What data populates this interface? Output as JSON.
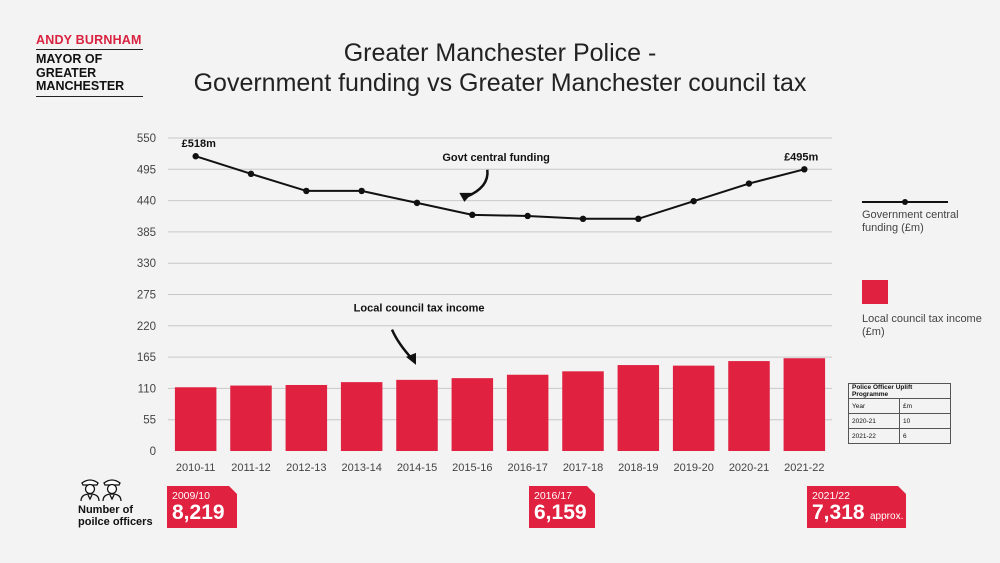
{
  "brand": {
    "name": "ANDY BURNHAM",
    "role_lines": [
      "MAYOR OF",
      "GREATER",
      "MANCHESTER"
    ]
  },
  "title_lines": [
    "Greater Manchester Police -",
    "Government funding vs Greater Manchester council tax"
  ],
  "colors": {
    "bar": "#e0213f",
    "line": "#111111",
    "callout": "#e0213f",
    "grid": "#c8c8c8"
  },
  "chart_data": {
    "type": "bar",
    "categories": [
      "2010-11",
      "2011-12",
      "2012-13",
      "2013-14",
      "2014-15",
      "2015-16",
      "2016-17",
      "2017-18",
      "2018-19",
      "2019-20",
      "2020-21",
      "2021-22"
    ],
    "ylim": [
      0,
      550
    ],
    "yticks": [
      0,
      55,
      110,
      165,
      220,
      275,
      330,
      385,
      440,
      495,
      550
    ],
    "grid": true,
    "series": [
      {
        "name": "Government central funding (£m)",
        "type": "line",
        "values": [
          518,
          487,
          457,
          457,
          436,
          415,
          413,
          408,
          408,
          439,
          470,
          495
        ]
      },
      {
        "name": "Local council tax income (£m)",
        "type": "bar",
        "values": [
          112,
          115,
          116,
          121,
          125,
          128,
          134,
          140,
          151,
          150,
          158,
          163
        ]
      }
    ],
    "annotations": {
      "line_label": "Govt central funding",
      "bar_label": "Local council tax income",
      "first_value_label": "£518m",
      "last_value_label": "£495m"
    }
  },
  "legend": {
    "line": "Government central funding (£m)",
    "bar": "Local council tax income (£m)"
  },
  "uplift_table": {
    "title": "Police Officer Uplift Programme",
    "headers": [
      "Year",
      "£m"
    ],
    "rows": [
      [
        "2020-21",
        "10"
      ],
      [
        "2021-22",
        "6"
      ]
    ]
  },
  "officers": {
    "label_lines": [
      "Number of",
      "poilce officers"
    ],
    "callouts": [
      {
        "year": "2009/10",
        "value": "8,219",
        "suffix": ""
      },
      {
        "year": "2016/17",
        "value": "6,159",
        "suffix": ""
      },
      {
        "year": "2021/22",
        "value": "7,318",
        "suffix": "approx."
      }
    ]
  }
}
